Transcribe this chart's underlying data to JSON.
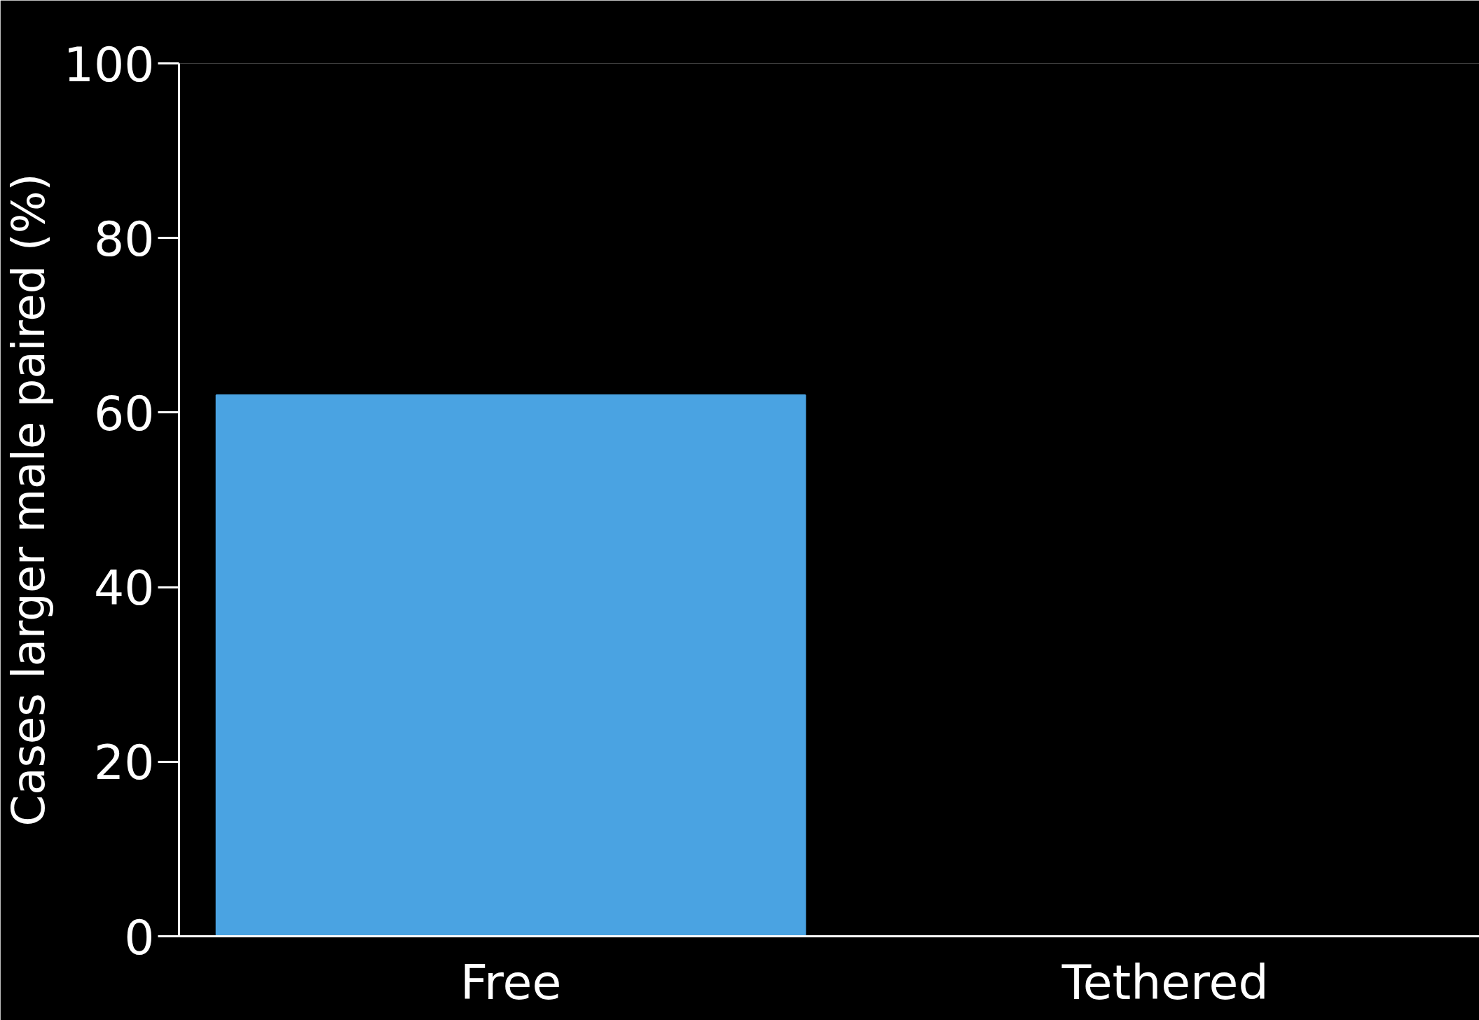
{
  "chart_data": {
    "type": "bar",
    "ylabel": "Cases larger male paired (%)",
    "categories": [
      "Free",
      "Tethered"
    ],
    "values": [
      62,
      0
    ],
    "color": "#4aa3e2",
    "ylim": [
      0,
      100
    ],
    "yticks": [
      0,
      20,
      40,
      60,
      80,
      100
    ],
    "grid": false
  }
}
